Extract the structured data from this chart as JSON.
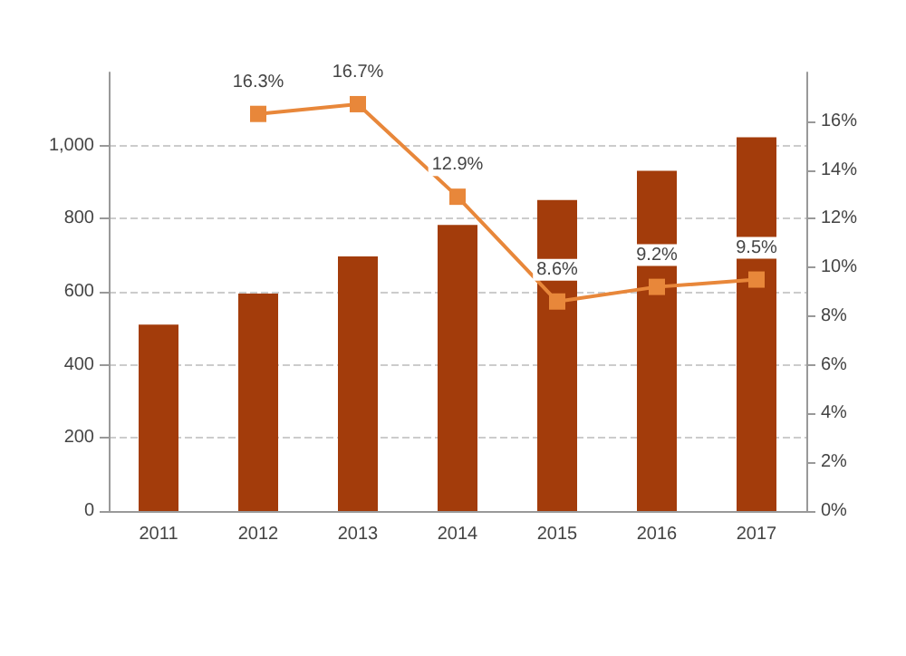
{
  "chart_data": {
    "type": "bar",
    "categories": [
      "2011",
      "2012",
      "2013",
      "2014",
      "2015",
      "2016",
      "2017"
    ],
    "series": [
      {
        "color": "#a33c0b",
        "values": [
          510,
          595,
          697,
          783,
          851,
          931,
          1023
        ]
      },
      {
        "type": "line",
        "axis": "y2",
        "color": "#e8873a",
        "values": [
          null,
          16.3,
          16.7,
          12.9,
          8.6,
          9.2,
          9.5
        ],
        "value_labels": [
          null,
          "16.3%",
          "16.7%",
          "12.9%",
          "8.6%",
          "9.2%",
          "9.5%"
        ]
      }
    ],
    "ylim": [
      0,
      1200
    ],
    "yticks": [
      0,
      {
        "value": 200,
        "label": "200"
      },
      {
        "value": 400,
        "label": "400"
      },
      {
        "value": 600,
        "label": "600"
      },
      {
        "value": 800,
        "label": "800"
      },
      {
        "value": 1000,
        "label": "1,000"
      }
    ],
    "y2lim": [
      0,
      18
    ],
    "y2ticks": [
      {
        "value": 0,
        "label": "0%"
      },
      {
        "value": 2,
        "label": "2%"
      },
      {
        "value": 4,
        "label": "4%"
      },
      {
        "value": 6,
        "label": "6%"
      },
      {
        "value": 8,
        "label": "8%"
      },
      {
        "value": 10,
        "label": "10%"
      },
      {
        "value": 12,
        "label": "12%"
      },
      {
        "value": 14,
        "label": "14%"
      },
      {
        "value": 16,
        "label": "16%"
      }
    ],
    "grid": "y",
    "marker": "square"
  }
}
